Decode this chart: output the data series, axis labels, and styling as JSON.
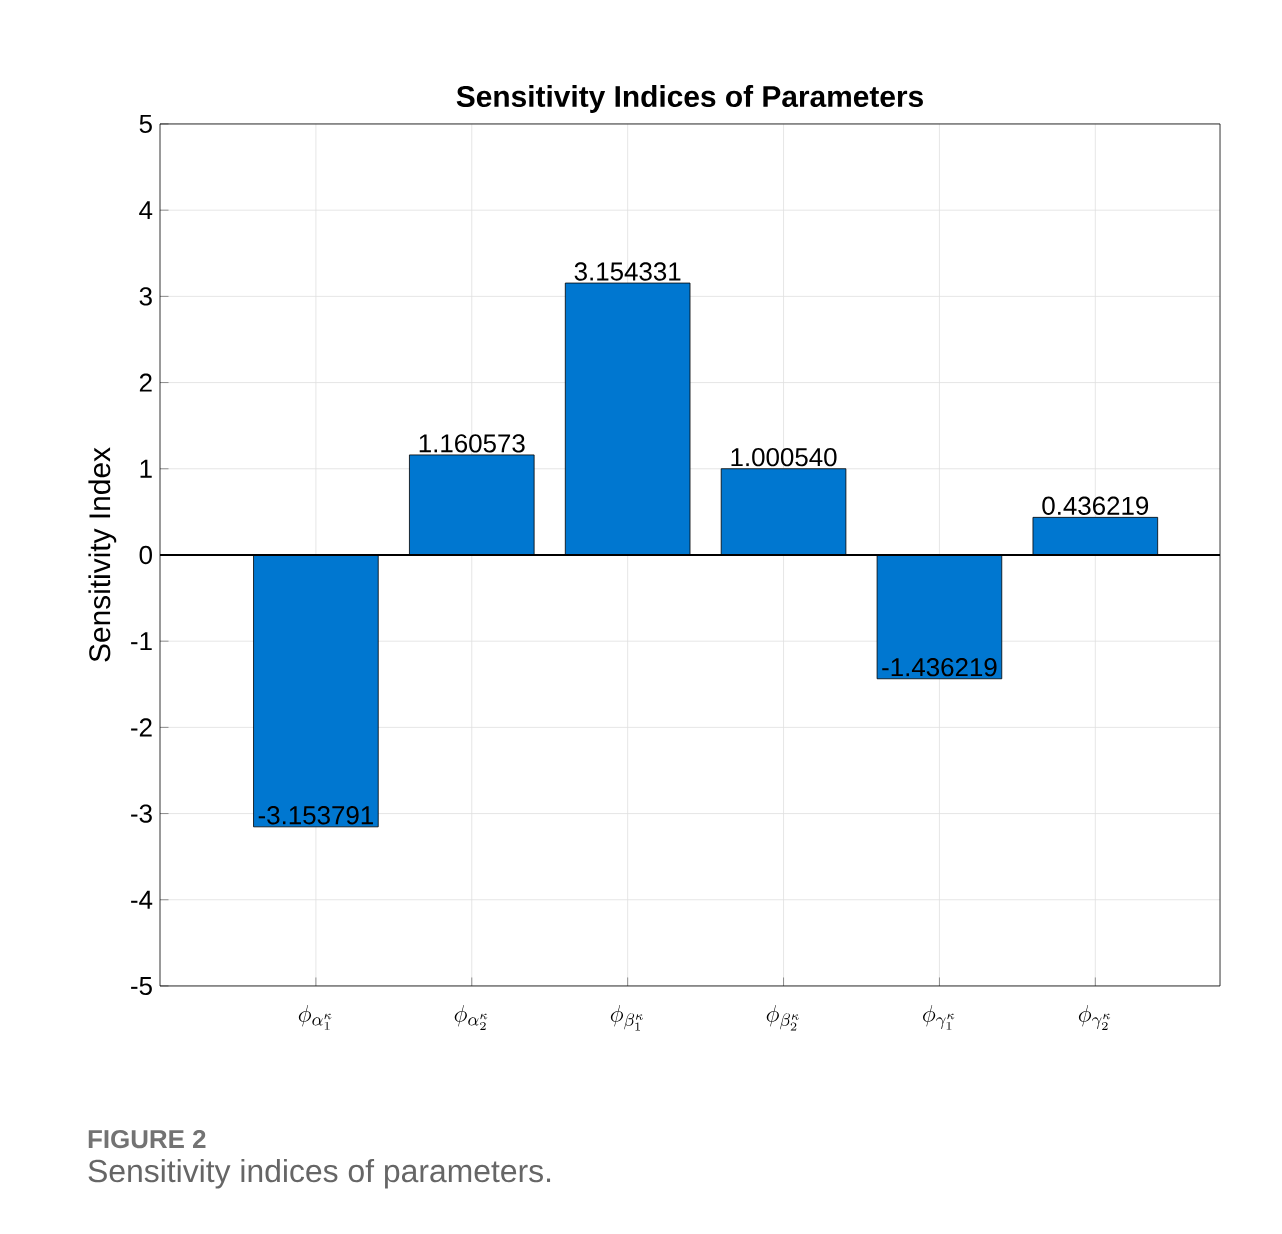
{
  "chart_data": {
    "type": "bar",
    "title": "Sensitivity Indices of Parameters",
    "ylabel": "Sensitivity Index",
    "categories": [
      "\\phi_{\\alpha_1^\\kappa}",
      "\\phi_{\\alpha_2^\\kappa}",
      "\\phi_{\\beta_1^\\kappa}",
      "\\phi_{\\beta_2^\\kappa}",
      "\\phi_{\\gamma_1^\\kappa}",
      "\\phi_{\\gamma_2^\\kappa}"
    ],
    "values": [
      -3.153791,
      1.160573,
      3.154331,
      1.00054,
      -1.436219,
      0.436219
    ],
    "color": "#0077d0",
    "ylim": [
      -5,
      5
    ],
    "yticks": [
      -5,
      -4,
      -3,
      -2,
      -1,
      0,
      1,
      2,
      3,
      4,
      5
    ],
    "grid": true,
    "value_labels": [
      "-3.153791",
      "1.160573",
      "3.154331",
      "1.000540",
      "-1.436219",
      "0.436219"
    ],
    "ref_lines": [
      {
        "axis": "y",
        "value": 0,
        "color": "#000000"
      }
    ],
    "annotations": [
      "FIGURE 2",
      "Sensitivity indices of parameters."
    ]
  }
}
